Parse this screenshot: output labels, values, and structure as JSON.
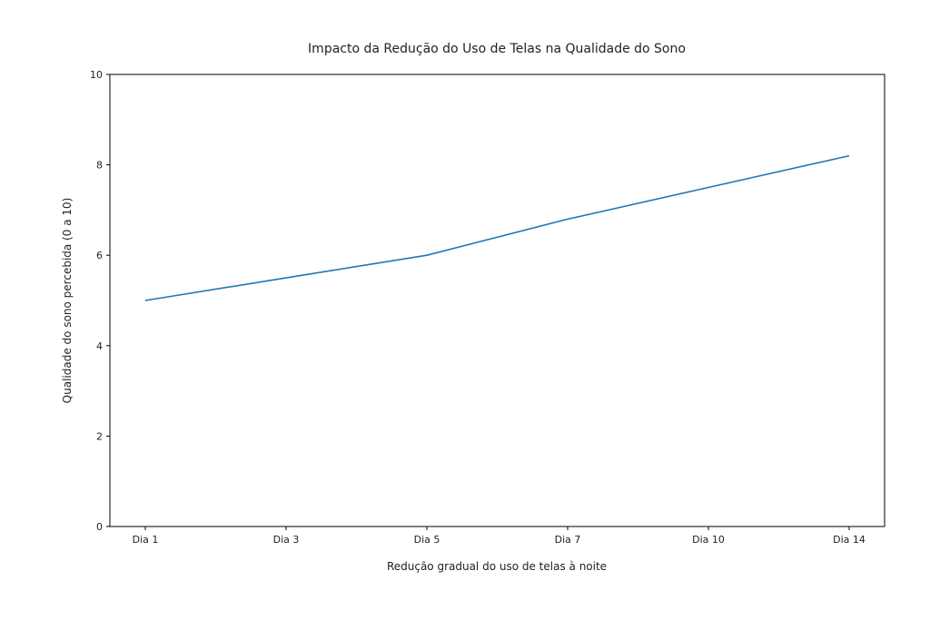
{
  "chart_data": {
    "type": "line",
    "title": "Impacto da Redução do Uso de Telas na Qualidade do Sono",
    "xlabel": "Redução gradual do uso de telas à noite",
    "ylabel": "Qualidade do sono percebida (0 a 10)",
    "categories": [
      "Dia 1",
      "Dia 3",
      "Dia 5",
      "Dia 7",
      "Dia 10",
      "Dia 14"
    ],
    "series": [
      {
        "values": [
          5.0,
          5.5,
          6.0,
          6.8,
          7.5,
          8.2
        ],
        "color": "#1f77b4"
      }
    ],
    "ylim": [
      0,
      10
    ],
    "yticks": [
      0,
      2,
      4,
      6,
      8,
      10
    ],
    "grid": false,
    "legend": "none"
  }
}
